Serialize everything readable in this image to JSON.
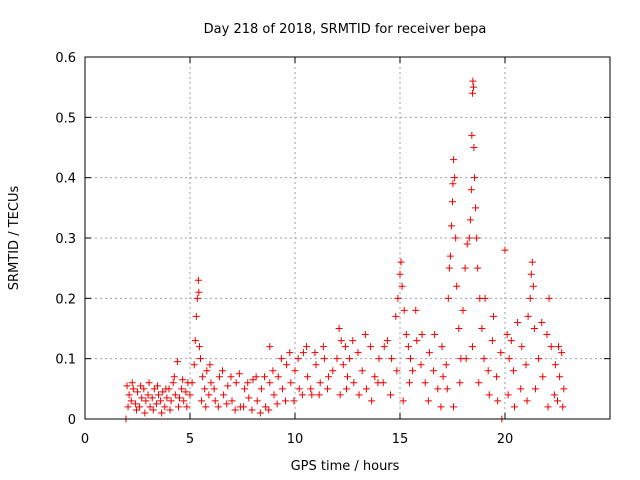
{
  "chart_data": {
    "type": "scatter",
    "title": "Day 218 of 2018, SRMTID for receiver bepa",
    "xlabel": "GPS time / hours",
    "ylabel": "SRMTID / TECUs",
    "xlim": [
      0,
      25
    ],
    "ylim": [
      0,
      0.6
    ],
    "xticks": [
      0,
      5,
      10,
      15,
      20
    ],
    "yticks": [
      0,
      0.1,
      0.2,
      0.3,
      0.4,
      0.5,
      0.6
    ],
    "xtick_labels": [
      "0",
      "5",
      "10",
      "15",
      "20"
    ],
    "ytick_labels": [
      "0",
      "0.1",
      "0.2",
      "0.3",
      "0.4",
      "0.5",
      "0.6"
    ],
    "grid": true,
    "marker": "+",
    "color": "#ee0000",
    "series": [
      {
        "name": "SRMTID",
        "points": [
          [
            1.95,
            0.0
          ],
          [
            2.0,
            0.055
          ],
          [
            2.1,
            0.04
          ],
          [
            2.2,
            0.03
          ],
          [
            2.3,
            0.05
          ],
          [
            2.4,
            0.025
          ],
          [
            2.5,
            0.045
          ],
          [
            2.6,
            0.02
          ],
          [
            2.7,
            0.035
          ],
          [
            2.8,
            0.05
          ],
          [
            2.9,
            0.03
          ],
          [
            3.0,
            0.04
          ],
          [
            3.1,
            0.02
          ],
          [
            3.2,
            0.035
          ],
          [
            3.3,
            0.05
          ],
          [
            3.4,
            0.025
          ],
          [
            3.5,
            0.04
          ],
          [
            3.6,
            0.03
          ],
          [
            3.7,
            0.045
          ],
          [
            3.8,
            0.02
          ],
          [
            3.9,
            0.035
          ],
          [
            4.0,
            0.05
          ],
          [
            4.1,
            0.03
          ],
          [
            4.2,
            0.06
          ],
          [
            4.3,
            0.04
          ],
          [
            4.4,
            0.095
          ],
          [
            4.5,
            0.035
          ],
          [
            4.6,
            0.05
          ],
          [
            4.7,
            0.03
          ],
          [
            4.8,
            0.045
          ],
          [
            4.9,
            0.06
          ],
          [
            5.0,
            0.04
          ],
          [
            2.05,
            0.02
          ],
          [
            2.25,
            0.06
          ],
          [
            2.45,
            0.015
          ],
          [
            2.65,
            0.055
          ],
          [
            2.85,
            0.01
          ],
          [
            3.05,
            0.06
          ],
          [
            3.25,
            0.015
          ],
          [
            3.45,
            0.055
          ],
          [
            3.65,
            0.01
          ],
          [
            3.85,
            0.05
          ],
          [
            4.05,
            0.015
          ],
          [
            4.25,
            0.07
          ],
          [
            4.45,
            0.02
          ],
          [
            4.65,
            0.065
          ],
          [
            4.85,
            0.02
          ],
          [
            5.1,
            0.06
          ],
          [
            5.2,
            0.09
          ],
          [
            5.25,
            0.13
          ],
          [
            5.3,
            0.17
          ],
          [
            5.35,
            0.2
          ],
          [
            5.4,
            0.23
          ],
          [
            5.42,
            0.21
          ],
          [
            5.45,
            0.12
          ],
          [
            5.5,
            0.1
          ],
          [
            5.6,
            0.07
          ],
          [
            5.7,
            0.05
          ],
          [
            5.8,
            0.08
          ],
          [
            5.9,
            0.04
          ],
          [
            6.0,
            0.06
          ],
          [
            6.2,
            0.03
          ],
          [
            6.4,
            0.07
          ],
          [
            6.6,
            0.04
          ],
          [
            6.8,
            0.055
          ],
          [
            7.0,
            0.03
          ],
          [
            7.2,
            0.06
          ],
          [
            7.4,
            0.02
          ],
          [
            7.6,
            0.05
          ],
          [
            7.8,
            0.035
          ],
          [
            8.0,
            0.065
          ],
          [
            8.2,
            0.03
          ],
          [
            8.4,
            0.05
          ],
          [
            8.6,
            0.02
          ],
          [
            8.8,
            0.06
          ],
          [
            8.8,
            0.12
          ],
          [
            9.0,
            0.04
          ],
          [
            9.2,
            0.07
          ],
          [
            9.4,
            0.05
          ],
          [
            9.6,
            0.09
          ],
          [
            9.8,
            0.06
          ],
          [
            10.0,
            0.08
          ],
          [
            10.2,
            0.05
          ],
          [
            10.4,
            0.11
          ],
          [
            10.6,
            0.07
          ],
          [
            10.8,
            0.04
          ],
          [
            11.0,
            0.09
          ],
          [
            11.2,
            0.06
          ],
          [
            11.4,
            0.1
          ],
          [
            11.6,
            0.07
          ],
          [
            11.8,
            0.08
          ],
          [
            5.55,
            0.03
          ],
          [
            5.75,
            0.02
          ],
          [
            5.95,
            0.09
          ],
          [
            6.15,
            0.05
          ],
          [
            6.35,
            0.02
          ],
          [
            6.55,
            0.08
          ],
          [
            6.75,
            0.025
          ],
          [
            6.95,
            0.07
          ],
          [
            7.15,
            0.015
          ],
          [
            7.35,
            0.075
          ],
          [
            7.55,
            0.02
          ],
          [
            7.75,
            0.06
          ],
          [
            7.95,
            0.015
          ],
          [
            8.15,
            0.07
          ],
          [
            8.35,
            0.01
          ],
          [
            8.55,
            0.07
          ],
          [
            8.75,
            0.015
          ],
          [
            8.95,
            0.08
          ],
          [
            9.15,
            0.025
          ],
          [
            9.35,
            0.1
          ],
          [
            9.55,
            0.03
          ],
          [
            9.75,
            0.11
          ],
          [
            9.95,
            0.03
          ],
          [
            10.15,
            0.1
          ],
          [
            10.35,
            0.04
          ],
          [
            10.55,
            0.12
          ],
          [
            10.75,
            0.05
          ],
          [
            10.95,
            0.11
          ],
          [
            11.15,
            0.04
          ],
          [
            11.35,
            0.12
          ],
          [
            11.55,
            0.05
          ],
          [
            12.0,
            0.1
          ],
          [
            12.1,
            0.15
          ],
          [
            12.2,
            0.13
          ],
          [
            12.3,
            0.09
          ],
          [
            12.4,
            0.12
          ],
          [
            12.5,
            0.07
          ],
          [
            12.6,
            0.1
          ],
          [
            12.8,
            0.06
          ],
          [
            13.0,
            0.11
          ],
          [
            13.2,
            0.08
          ],
          [
            13.4,
            0.05
          ],
          [
            13.6,
            0.12
          ],
          [
            13.8,
            0.07
          ],
          [
            14.0,
            0.1
          ],
          [
            14.2,
            0.06
          ],
          [
            14.4,
            0.13
          ],
          [
            14.6,
            0.1
          ],
          [
            14.8,
            0.17
          ],
          [
            14.9,
            0.2
          ],
          [
            15.0,
            0.24
          ],
          [
            15.05,
            0.26
          ],
          [
            15.1,
            0.22
          ],
          [
            15.2,
            0.18
          ],
          [
            15.3,
            0.14
          ],
          [
            15.4,
            0.12
          ],
          [
            15.5,
            0.1
          ],
          [
            15.6,
            0.08
          ],
          [
            15.8,
            0.13
          ],
          [
            16.0,
            0.09
          ],
          [
            16.2,
            0.06
          ],
          [
            16.4,
            0.11
          ],
          [
            16.6,
            0.08
          ],
          [
            16.8,
            0.05
          ],
          [
            17.0,
            0.12
          ],
          [
            17.2,
            0.09
          ],
          [
            12.15,
            0.04
          ],
          [
            12.45,
            0.05
          ],
          [
            12.75,
            0.13
          ],
          [
            13.05,
            0.04
          ],
          [
            13.35,
            0.14
          ],
          [
            13.65,
            0.03
          ],
          [
            13.95,
            0.06
          ],
          [
            14.25,
            0.12
          ],
          [
            14.55,
            0.04
          ],
          [
            14.85,
            0.08
          ],
          [
            15.15,
            0.03
          ],
          [
            15.45,
            0.06
          ],
          [
            15.75,
            0.18
          ],
          [
            16.05,
            0.14
          ],
          [
            16.35,
            0.03
          ],
          [
            16.65,
            0.14
          ],
          [
            16.95,
            0.02
          ],
          [
            17.05,
            0.07
          ],
          [
            17.3,
            0.2
          ],
          [
            17.35,
            0.25
          ],
          [
            17.4,
            0.27
          ],
          [
            17.45,
            0.32
          ],
          [
            17.5,
            0.36
          ],
          [
            17.52,
            0.39
          ],
          [
            17.55,
            0.43
          ],
          [
            17.6,
            0.4
          ],
          [
            17.65,
            0.3
          ],
          [
            17.7,
            0.22
          ],
          [
            17.8,
            0.15
          ],
          [
            17.9,
            0.1
          ],
          [
            18.0,
            0.18
          ],
          [
            18.1,
            0.25
          ],
          [
            18.2,
            0.29
          ],
          [
            18.3,
            0.3
          ],
          [
            18.35,
            0.33
          ],
          [
            18.4,
            0.38
          ],
          [
            18.42,
            0.47
          ],
          [
            18.45,
            0.54
          ],
          [
            18.47,
            0.56
          ],
          [
            18.5,
            0.55
          ],
          [
            18.52,
            0.45
          ],
          [
            18.55,
            0.4
          ],
          [
            18.6,
            0.35
          ],
          [
            18.65,
            0.3
          ],
          [
            18.7,
            0.25
          ],
          [
            18.8,
            0.2
          ],
          [
            18.9,
            0.15
          ],
          [
            19.0,
            0.1
          ],
          [
            19.2,
            0.08
          ],
          [
            19.4,
            0.13
          ],
          [
            19.6,
            0.07
          ],
          [
            19.8,
            0.11
          ],
          [
            17.25,
            0.05
          ],
          [
            17.55,
            0.02
          ],
          [
            17.85,
            0.06
          ],
          [
            18.15,
            0.1
          ],
          [
            18.45,
            0.12
          ],
          [
            18.75,
            0.06
          ],
          [
            19.05,
            0.2
          ],
          [
            19.25,
            0.04
          ],
          [
            19.45,
            0.17
          ],
          [
            19.65,
            0.03
          ],
          [
            19.85,
            0.0
          ],
          [
            20.0,
            0.28
          ],
          [
            20.1,
            0.14
          ],
          [
            20.2,
            0.1
          ],
          [
            20.3,
            0.13
          ],
          [
            20.4,
            0.08
          ],
          [
            20.6,
            0.16
          ],
          [
            20.8,
            0.12
          ],
          [
            21.0,
            0.09
          ],
          [
            21.1,
            0.17
          ],
          [
            21.2,
            0.2
          ],
          [
            21.25,
            0.24
          ],
          [
            21.3,
            0.26
          ],
          [
            21.35,
            0.22
          ],
          [
            21.4,
            0.15
          ],
          [
            21.6,
            0.1
          ],
          [
            21.8,
            0.07
          ],
          [
            22.0,
            0.14
          ],
          [
            22.1,
            0.2
          ],
          [
            22.2,
            0.12
          ],
          [
            22.4,
            0.09
          ],
          [
            22.5,
            0.03
          ],
          [
            22.6,
            0.07
          ],
          [
            22.7,
            0.11
          ],
          [
            22.8,
            0.05
          ],
          [
            20.15,
            0.04
          ],
          [
            20.45,
            0.02
          ],
          [
            20.75,
            0.05
          ],
          [
            21.05,
            0.03
          ],
          [
            21.45,
            0.05
          ],
          [
            21.75,
            0.16
          ],
          [
            22.05,
            0.02
          ],
          [
            22.35,
            0.04
          ],
          [
            22.55,
            0.12
          ],
          [
            22.75,
            0.02
          ]
        ]
      }
    ]
  }
}
